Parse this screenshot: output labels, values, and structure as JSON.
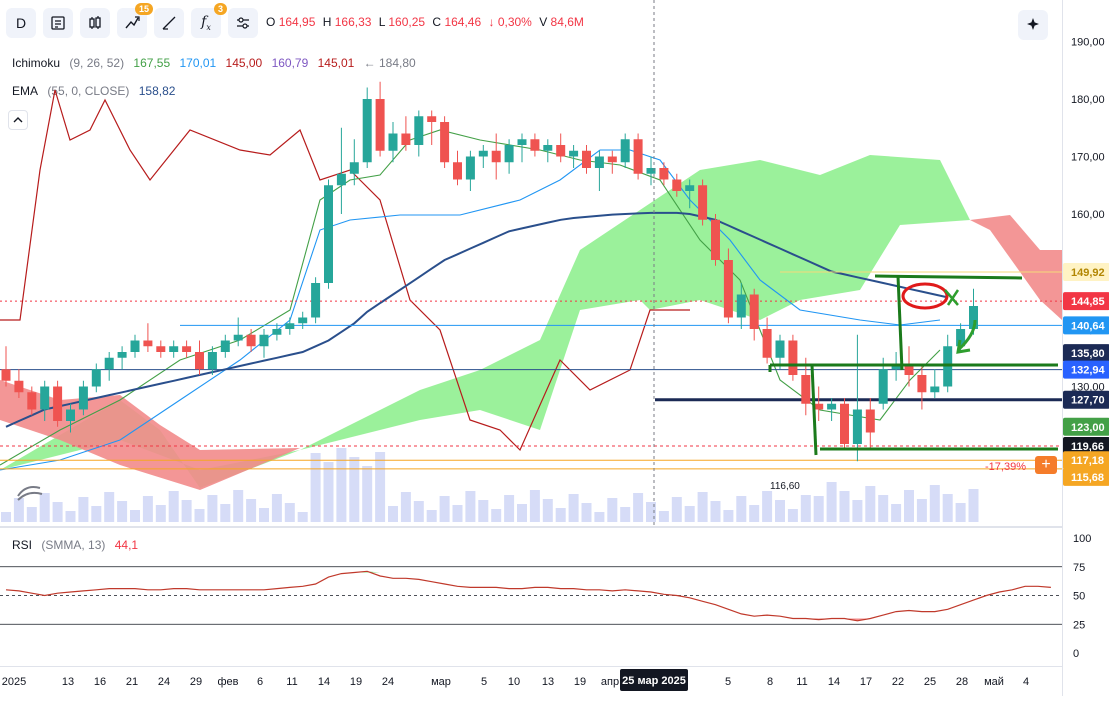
{
  "toolbar": {
    "interval": "D",
    "indicators_badge": "15",
    "functions_badge": "3"
  },
  "ohlc": {
    "o_label": "O",
    "o": "164,95",
    "h_label": "H",
    "h": "166,33",
    "l_label": "L",
    "l": "160,25",
    "c_label": "C",
    "c": "164,46",
    "change": "↓ 0,30%",
    "v_label": "V",
    "v": "84,6M"
  },
  "ichimoku": {
    "name": "Ichimoku",
    "params": "(9, 26, 52)",
    "v1": "167,55",
    "v1_color": "#43a047",
    "v2": "170,01",
    "v2_color": "#2196f3",
    "v3": "145,00",
    "v3_color": "#b71c1c",
    "v4": "160,79",
    "v4_color": "#7e57c2",
    "v5": "145,01",
    "v5_color": "#b71c1c",
    "extra": "← 184,80"
  },
  "ema": {
    "name": "EMA",
    "params": "(55, 0, CLOSE)",
    "value": "158,82",
    "color": "#2a4f8c"
  },
  "rsi": {
    "name": "RSI",
    "params": "(SMMA, 13)",
    "value": "44,1"
  },
  "annotations": {
    "pct": "-17,39%",
    "low_label": "116,60"
  },
  "price_axis": {
    "ticks": [
      "190,00",
      "180,00",
      "170,00",
      "160,00",
      "150,00",
      "140,00",
      "130,00",
      "120,00"
    ],
    "tags": [
      {
        "text": "149,92",
        "bg": "#fff3c4",
        "fg": "#b28704"
      },
      {
        "text": "144,85",
        "bg": "#f23645",
        "fg": "#ffffff"
      },
      {
        "text": "140,64",
        "bg": "#2196f3",
        "fg": "#ffffff"
      },
      {
        "text": "135,80",
        "bg": "#1b2a55",
        "fg": "#ffffff"
      },
      {
        "text": "132,94",
        "bg": "#2962ff",
        "fg": "#ffffff"
      },
      {
        "text": "127,70",
        "bg": "#1b2a55",
        "fg": "#ffffff"
      },
      {
        "text": "123,00",
        "bg": "#43a047",
        "fg": "#ffffff"
      },
      {
        "text": "119,66",
        "bg": "#131722",
        "fg": "#ffffff"
      },
      {
        "text": "117,18",
        "bg": "#f5a623",
        "fg": "#ffffff"
      },
      {
        "text": "115,68",
        "bg": "#f5a623",
        "fg": "#ffffff"
      }
    ]
  },
  "rsi_axis": {
    "ticks": [
      "100",
      "75",
      "50",
      "25",
      "0"
    ]
  },
  "time_axis": {
    "labels": [
      "2025",
      "13",
      "16",
      "21",
      "24",
      "29",
      "фев",
      "6",
      "11",
      "14",
      "19",
      "24",
      "мар",
      "5",
      "10",
      "13",
      "19",
      "апр",
      "5",
      "8",
      "11",
      "14",
      "17",
      "22",
      "25",
      "28",
      "май",
      "4"
    ],
    "crosshair_date": "25 мар 2025"
  },
  "chart_data": {
    "type": "candlestick",
    "symbol_interval": "D",
    "ylim": [
      112,
      192
    ],
    "candles": [
      {
        "o": 133,
        "h": 137,
        "l": 130,
        "c": 131
      },
      {
        "o": 131,
        "h": 133,
        "l": 128,
        "c": 129
      },
      {
        "o": 129,
        "h": 130,
        "l": 125,
        "c": 126
      },
      {
        "o": 126,
        "h": 131,
        "l": 124,
        "c": 130
      },
      {
        "o": 130,
        "h": 131,
        "l": 123,
        "c": 124
      },
      {
        "o": 124,
        "h": 127,
        "l": 122,
        "c": 126
      },
      {
        "o": 126,
        "h": 131,
        "l": 125,
        "c": 130
      },
      {
        "o": 130,
        "h": 134,
        "l": 129,
        "c": 133
      },
      {
        "o": 133,
        "h": 136,
        "l": 131,
        "c": 135
      },
      {
        "o": 135,
        "h": 137,
        "l": 133,
        "c": 136
      },
      {
        "o": 136,
        "h": 139,
        "l": 135,
        "c": 138
      },
      {
        "o": 138,
        "h": 141,
        "l": 136,
        "c": 137
      },
      {
        "o": 137,
        "h": 138,
        "l": 135,
        "c": 136
      },
      {
        "o": 136,
        "h": 138,
        "l": 135,
        "c": 137
      },
      {
        "o": 137,
        "h": 138,
        "l": 135,
        "c": 136
      },
      {
        "o": 136,
        "h": 138,
        "l": 132,
        "c": 133
      },
      {
        "o": 133,
        "h": 137,
        "l": 132,
        "c": 136
      },
      {
        "o": 136,
        "h": 139,
        "l": 135,
        "c": 138
      },
      {
        "o": 138,
        "h": 142,
        "l": 137,
        "c": 139
      },
      {
        "o": 139,
        "h": 140,
        "l": 136,
        "c": 137
      },
      {
        "o": 137,
        "h": 140,
        "l": 135,
        "c": 139
      },
      {
        "o": 139,
        "h": 141,
        "l": 138,
        "c": 140
      },
      {
        "o": 140,
        "h": 142,
        "l": 139,
        "c": 141
      },
      {
        "o": 141,
        "h": 143,
        "l": 140,
        "c": 142
      },
      {
        "o": 142,
        "h": 149,
        "l": 141,
        "c": 148
      },
      {
        "o": 148,
        "h": 166,
        "l": 147,
        "c": 165
      },
      {
        "o": 165,
        "h": 175,
        "l": 160,
        "c": 167
      },
      {
        "o": 167,
        "h": 173,
        "l": 165,
        "c": 169
      },
      {
        "o": 169,
        "h": 182,
        "l": 168,
        "c": 180
      },
      {
        "o": 180,
        "h": 183,
        "l": 170,
        "c": 171
      },
      {
        "o": 171,
        "h": 176,
        "l": 169,
        "c": 174
      },
      {
        "o": 174,
        "h": 177,
        "l": 171,
        "c": 172
      },
      {
        "o": 172,
        "h": 178,
        "l": 170,
        "c": 177
      },
      {
        "o": 177,
        "h": 178,
        "l": 172,
        "c": 176
      },
      {
        "o": 176,
        "h": 177,
        "l": 168,
        "c": 169
      },
      {
        "o": 169,
        "h": 171,
        "l": 165,
        "c": 166
      },
      {
        "o": 166,
        "h": 171,
        "l": 164,
        "c": 170
      },
      {
        "o": 170,
        "h": 172,
        "l": 168,
        "c": 171
      },
      {
        "o": 171,
        "h": 174,
        "l": 166,
        "c": 169
      },
      {
        "o": 169,
        "h": 173,
        "l": 167,
        "c": 172
      },
      {
        "o": 172,
        "h": 174,
        "l": 169,
        "c": 173
      },
      {
        "o": 173,
        "h": 174,
        "l": 170,
        "c": 171
      },
      {
        "o": 171,
        "h": 173,
        "l": 169,
        "c": 172
      },
      {
        "o": 172,
        "h": 174,
        "l": 169,
        "c": 170
      },
      {
        "o": 170,
        "h": 172,
        "l": 168,
        "c": 171
      },
      {
        "o": 171,
        "h": 172,
        "l": 167,
        "c": 168
      },
      {
        "o": 168,
        "h": 171,
        "l": 164,
        "c": 170
      },
      {
        "o": 170,
        "h": 171,
        "l": 167,
        "c": 169
      },
      {
        "o": 169,
        "h": 174,
        "l": 168,
        "c": 173
      },
      {
        "o": 173,
        "h": 174,
        "l": 166,
        "c": 167
      },
      {
        "o": 167,
        "h": 170,
        "l": 165,
        "c": 168
      },
      {
        "o": 168,
        "h": 169,
        "l": 165,
        "c": 166
      },
      {
        "o": 166,
        "h": 167,
        "l": 163,
        "c": 164
      },
      {
        "o": 164,
        "h": 166,
        "l": 161,
        "c": 165
      },
      {
        "o": 165,
        "h": 166,
        "l": 158,
        "c": 159
      },
      {
        "o": 159,
        "h": 160,
        "l": 151,
        "c": 152
      },
      {
        "o": 152,
        "h": 154,
        "l": 141,
        "c": 142
      },
      {
        "o": 142,
        "h": 148,
        "l": 140,
        "c": 146
      },
      {
        "o": 146,
        "h": 147,
        "l": 138,
        "c": 140
      },
      {
        "o": 140,
        "h": 142,
        "l": 134,
        "c": 135
      },
      {
        "o": 135,
        "h": 139,
        "l": 133,
        "c": 138
      },
      {
        "o": 138,
        "h": 139,
        "l": 131,
        "c": 132
      },
      {
        "o": 132,
        "h": 135,
        "l": 125,
        "c": 127
      },
      {
        "o": 127,
        "h": 130,
        "l": 124,
        "c": 126
      },
      {
        "o": 126,
        "h": 128,
        "l": 124,
        "c": 127
      },
      {
        "o": 127,
        "h": 128,
        "l": 119,
        "c": 120
      },
      {
        "o": 120,
        "h": 139,
        "l": 117,
        "c": 126
      },
      {
        "o": 126,
        "h": 128,
        "l": 119,
        "c": 122
      },
      {
        "o": 127,
        "h": 135,
        "l": 126,
        "c": 133
      },
      {
        "o": 133,
        "h": 136,
        "l": 131,
        "c": 134
      },
      {
        "o": 134,
        "h": 137,
        "l": 130,
        "c": 132
      },
      {
        "o": 132,
        "h": 134,
        "l": 126,
        "c": 129
      },
      {
        "o": 129,
        "h": 133,
        "l": 128,
        "c": 130
      },
      {
        "o": 130,
        "h": 139,
        "l": 129,
        "c": 137
      },
      {
        "o": 137,
        "h": 141,
        "l": 136,
        "c": 140
      },
      {
        "o": 140,
        "h": 147,
        "l": 139,
        "c": 144
      }
    ],
    "ema": [
      123,
      124,
      125,
      126,
      126.5,
      127,
      127.5,
      128,
      128.5,
      129,
      129.5,
      130,
      130.5,
      131,
      131.5,
      132,
      132.5,
      133,
      133.5,
      134,
      134.5,
      135,
      135.5,
      136,
      137,
      138,
      139.5,
      141,
      143,
      144.5,
      146,
      147.5,
      149,
      150.5,
      152,
      153,
      154,
      155,
      156,
      157,
      157.5,
      158,
      158.5,
      159,
      159.3,
      159.5,
      159.7,
      159.9,
      160,
      160.1,
      160.2,
      160.2,
      160.2,
      160,
      159.5,
      159,
      158,
      157,
      156,
      155,
      154,
      153,
      152,
      151,
      150,
      149.5,
      149,
      148.5,
      148,
      147.5,
      147,
      146.5,
      146,
      145.5
    ],
    "rsi": [
      55,
      54,
      52,
      50,
      52,
      53,
      54,
      55,
      56,
      56,
      56,
      55,
      55,
      56,
      56,
      55,
      55,
      55,
      55,
      55,
      55,
      56,
      57,
      58,
      60,
      66,
      69,
      70,
      71,
      67,
      65,
      65,
      64,
      62,
      60,
      58,
      57,
      57,
      57,
      56,
      56,
      57,
      57,
      56,
      56,
      55,
      55,
      54,
      55,
      54,
      53,
      51,
      50,
      48,
      45,
      42,
      38,
      34,
      32,
      33,
      32,
      30,
      30,
      29,
      30,
      30,
      28,
      30,
      33,
      36,
      37,
      36,
      36,
      38,
      42,
      46,
      50,
      53,
      55,
      58,
      58,
      57
    ]
  }
}
